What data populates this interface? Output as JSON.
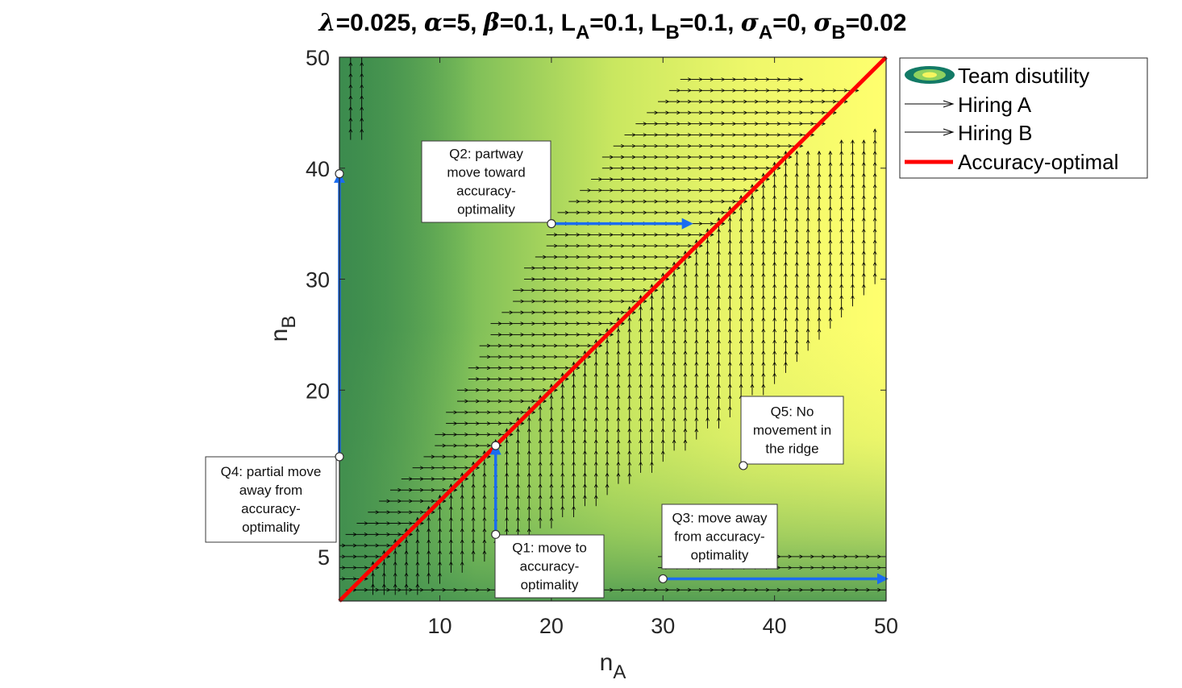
{
  "chart_data": {
    "type": "heatmap",
    "title_segments": [
      {
        "t": "λ",
        "italic": true
      },
      {
        "t": "=0.025, "
      },
      {
        "t": "α",
        "italic": true
      },
      {
        "t": "=5, "
      },
      {
        "t": "β",
        "italic": true
      },
      {
        "t": "=0.1, L"
      },
      {
        "t": "A",
        "sub": true
      },
      {
        "t": "=0.1, L"
      },
      {
        "t": "B",
        "sub": true
      },
      {
        "t": "=0.1, "
      },
      {
        "t": "σ",
        "italic": true
      },
      {
        "t": "A",
        "sub": true
      },
      {
        "t": "=0, "
      },
      {
        "t": "σ",
        "italic": true
      },
      {
        "t": "B",
        "sub": true
      },
      {
        "t": "=0.02"
      }
    ],
    "xlabel": {
      "main": "n",
      "sub": "A"
    },
    "ylabel": {
      "main": "n",
      "sub": "B"
    },
    "xlim": [
      1,
      50
    ],
    "ylim": [
      1,
      50
    ],
    "xticks": [
      10,
      20,
      30,
      40,
      50
    ],
    "yticks": [
      5,
      20,
      30,
      40,
      50
    ],
    "background": {
      "low_color": "#3f8f4f",
      "high_color": "#ffff6e"
    },
    "legend": {
      "placement": "outside-top-right",
      "entries": [
        {
          "label": "Team disutility",
          "kind": "contour"
        },
        {
          "label": "Hiring A",
          "kind": "arrow"
        },
        {
          "label": "Hiring B",
          "kind": "arrow"
        },
        {
          "label": "Accuracy-optimal",
          "kind": "line",
          "color": "#ff0000"
        }
      ]
    },
    "series": [
      {
        "name": "Accuracy-optimal",
        "type": "line",
        "color": "#ff0000",
        "x": [
          1,
          50
        ],
        "y": [
          1,
          50
        ]
      }
    ],
    "hiring_a_field": {
      "description_rows": "horizontal arrows for n_B rows",
      "rows": [
        {
          "y": 2,
          "x_from": 2,
          "x_to": 50
        },
        {
          "y": 3,
          "x_from": 1,
          "x_to": 3
        },
        {
          "y": 4,
          "x_from": 1,
          "x_to": 4
        },
        {
          "y": 5,
          "x_from": 1,
          "x_to": 5
        },
        {
          "y": 4,
          "x_from": 30,
          "x_to": 50
        },
        {
          "y": 5,
          "x_from": 30,
          "x_to": 50
        },
        {
          "y": 6,
          "x_from": 1,
          "x_to": 6
        },
        {
          "y": 7,
          "x_from": 2,
          "x_to": 7
        },
        {
          "y": 8,
          "x_from": 3,
          "x_to": 8
        },
        {
          "y": 9,
          "x_from": 4,
          "x_to": 9
        },
        {
          "y": 10,
          "x_from": 5,
          "x_to": 10
        },
        {
          "y": 11,
          "x_from": 6,
          "x_to": 11
        },
        {
          "y": 12,
          "x_from": 7,
          "x_to": 12
        },
        {
          "y": 13,
          "x_from": 8,
          "x_to": 13
        },
        {
          "y": 14,
          "x_from": 9,
          "x_to": 14
        },
        {
          "y": 15,
          "x_from": 10,
          "x_to": 15
        },
        {
          "y": 16,
          "x_from": 10,
          "x_to": 16
        },
        {
          "y": 17,
          "x_from": 11,
          "x_to": 17
        },
        {
          "y": 18,
          "x_from": 11,
          "x_to": 18
        },
        {
          "y": 19,
          "x_from": 12,
          "x_to": 19
        },
        {
          "y": 20,
          "x_from": 12,
          "x_to": 20
        },
        {
          "y": 21,
          "x_from": 13,
          "x_to": 21
        },
        {
          "y": 22,
          "x_from": 13,
          "x_to": 22
        },
        {
          "y": 23,
          "x_from": 14,
          "x_to": 23
        },
        {
          "y": 24,
          "x_from": 14,
          "x_to": 24
        },
        {
          "y": 25,
          "x_from": 15,
          "x_to": 25
        },
        {
          "y": 26,
          "x_from": 15,
          "x_to": 26
        },
        {
          "y": 27,
          "x_from": 16,
          "x_to": 27
        },
        {
          "y": 28,
          "x_from": 17,
          "x_to": 28
        },
        {
          "y": 29,
          "x_from": 17,
          "x_to": 29
        },
        {
          "y": 30,
          "x_from": 18,
          "x_to": 30
        },
        {
          "y": 31,
          "x_from": 18,
          "x_to": 31
        },
        {
          "y": 32,
          "x_from": 19,
          "x_to": 32
        },
        {
          "y": 33,
          "x_from": 20,
          "x_to": 33
        },
        {
          "y": 34,
          "x_from": 20,
          "x_to": 34
        },
        {
          "y": 35,
          "x_from": 21,
          "x_to": 35
        },
        {
          "y": 36,
          "x_from": 21,
          "x_to": 36
        },
        {
          "y": 37,
          "x_from": 22,
          "x_to": 37
        },
        {
          "y": 38,
          "x_from": 23,
          "x_to": 38
        },
        {
          "y": 39,
          "x_from": 24,
          "x_to": 39
        },
        {
          "y": 40,
          "x_from": 25,
          "x_to": 40
        },
        {
          "y": 41,
          "x_from": 25,
          "x_to": 41
        },
        {
          "y": 42,
          "x_from": 26,
          "x_to": 42
        },
        {
          "y": 43,
          "x_from": 27,
          "x_to": 43
        },
        {
          "y": 44,
          "x_from": 28,
          "x_to": 44
        },
        {
          "y": 45,
          "x_from": 29,
          "x_to": 45
        },
        {
          "y": 46,
          "x_from": 30,
          "x_to": 46
        },
        {
          "y": 47,
          "x_from": 31,
          "x_to": 47
        },
        {
          "y": 48,
          "x_from": 32,
          "x_to": 42
        }
      ]
    },
    "hiring_b_field": {
      "description_cols": "vertical arrows for n_A columns",
      "cols": [
        {
          "x": 2,
          "y_from": 43,
          "y_to": 50
        },
        {
          "x": 3,
          "y_from": 43,
          "y_to": 50
        },
        {
          "x": 4,
          "y_from": 2,
          "y_to": 4
        },
        {
          "x": 5,
          "y_from": 2,
          "y_to": 5
        },
        {
          "x": 6,
          "y_from": 2,
          "y_to": 6
        },
        {
          "x": 7,
          "y_from": 2,
          "y_to": 7
        },
        {
          "x": 8,
          "y_from": 2,
          "y_to": 8
        },
        {
          "x": 9,
          "y_from": 3,
          "y_to": 9
        },
        {
          "x": 10,
          "y_from": 3,
          "y_to": 10
        },
        {
          "x": 11,
          "y_from": 4,
          "y_to": 11
        },
        {
          "x": 12,
          "y_from": 4,
          "y_to": 12
        },
        {
          "x": 13,
          "y_from": 5,
          "y_to": 13
        },
        {
          "x": 14,
          "y_from": 5,
          "y_to": 14
        },
        {
          "x": 15,
          "y_from": 6,
          "y_to": 15
        },
        {
          "x": 16,
          "y_from": 6,
          "y_to": 16
        },
        {
          "x": 17,
          "y_from": 7,
          "y_to": 17
        },
        {
          "x": 18,
          "y_from": 7,
          "y_to": 18
        },
        {
          "x": 19,
          "y_from": 8,
          "y_to": 19
        },
        {
          "x": 20,
          "y_from": 8,
          "y_to": 20
        },
        {
          "x": 21,
          "y_from": 9,
          "y_to": 21
        },
        {
          "x": 22,
          "y_from": 9,
          "y_to": 22
        },
        {
          "x": 23,
          "y_from": 10,
          "y_to": 23
        },
        {
          "x": 24,
          "y_from": 10,
          "y_to": 24
        },
        {
          "x": 25,
          "y_from": 11,
          "y_to": 25
        },
        {
          "x": 26,
          "y_from": 12,
          "y_to": 26
        },
        {
          "x": 27,
          "y_from": 12,
          "y_to": 27
        },
        {
          "x": 28,
          "y_from": 13,
          "y_to": 28
        },
        {
          "x": 29,
          "y_from": 13,
          "y_to": 29
        },
        {
          "x": 30,
          "y_from": 14,
          "y_to": 30
        },
        {
          "x": 31,
          "y_from": 15,
          "y_to": 31
        },
        {
          "x": 32,
          "y_from": 15,
          "y_to": 32
        },
        {
          "x": 33,
          "y_from": 16,
          "y_to": 33
        },
        {
          "x": 34,
          "y_from": 17,
          "y_to": 34
        },
        {
          "x": 35,
          "y_from": 17,
          "y_to": 35
        },
        {
          "x": 36,
          "y_from": 18,
          "y_to": 36
        },
        {
          "x": 37,
          "y_from": 19,
          "y_to": 37
        },
        {
          "x": 38,
          "y_from": 20,
          "y_to": 38
        },
        {
          "x": 39,
          "y_from": 20,
          "y_to": 39
        },
        {
          "x": 40,
          "y_from": 21,
          "y_to": 40
        },
        {
          "x": 41,
          "y_from": 22,
          "y_to": 41
        },
        {
          "x": 42,
          "y_from": 23,
          "y_to": 41
        },
        {
          "x": 43,
          "y_from": 24,
          "y_to": 41
        },
        {
          "x": 44,
          "y_from": 25,
          "y_to": 41
        },
        {
          "x": 45,
          "y_from": 26,
          "y_to": 41
        },
        {
          "x": 46,
          "y_from": 27,
          "y_to": 42
        },
        {
          "x": 47,
          "y_from": 28,
          "y_to": 42
        },
        {
          "x": 48,
          "y_from": 29,
          "y_to": 42
        },
        {
          "x": 49,
          "y_from": 30,
          "y_to": 43
        }
      ]
    },
    "paths": [
      {
        "name": "Q1",
        "from": [
          15,
          7
        ],
        "to": [
          15,
          15
        ],
        "color": "#1a6cf0"
      },
      {
        "name": "Q2",
        "from": [
          20,
          35
        ],
        "to": [
          32.5,
          35
        ],
        "color": "#1a6cf0"
      },
      {
        "name": "Q3",
        "from": [
          30,
          3
        ],
        "to": [
          50,
          3
        ],
        "color": "#1a6cf0"
      },
      {
        "name": "Q4",
        "from": [
          1,
          14
        ],
        "to": [
          1,
          39.5
        ],
        "color": "#1a6cf0"
      }
    ],
    "points": [
      {
        "x": 15,
        "y": 7
      },
      {
        "x": 15,
        "y": 15
      },
      {
        "x": 20,
        "y": 35
      },
      {
        "x": 30,
        "y": 3
      },
      {
        "x": 1,
        "y": 14
      },
      {
        "x": 1,
        "y": 39.5
      },
      {
        "x": 37.2,
        "y": 13.2
      }
    ],
    "annotations": [
      {
        "id": "q1",
        "lines": [
          "Q1: move to",
          "accuracy-",
          "optimality"
        ],
        "anchor": [
          15,
          7
        ]
      },
      {
        "id": "q2",
        "lines": [
          "Q2: partway",
          "move toward",
          "accuracy-",
          "optimality"
        ],
        "anchor": [
          20,
          35
        ]
      },
      {
        "id": "q3",
        "lines": [
          "Q3: move away",
          "from accuracy-",
          "optimality"
        ],
        "anchor": [
          30,
          3
        ]
      },
      {
        "id": "q4",
        "lines": [
          "Q4: partial move",
          "away from",
          "accuracy-",
          "optimality"
        ],
        "anchor": [
          1,
          14
        ]
      },
      {
        "id": "q5",
        "lines": [
          "Q5: No",
          "movement in",
          "the ridge"
        ],
        "anchor": [
          37.2,
          13.2
        ]
      }
    ]
  }
}
